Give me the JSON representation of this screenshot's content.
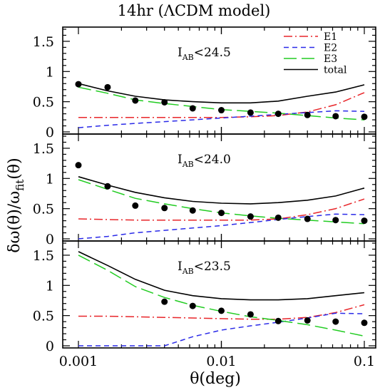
{
  "chart_data": {
    "type": "line",
    "title": "14hr (ΛCDM model)",
    "xlabel": "θ(deg)",
    "ylabel": "δω(θ)/ωfit(θ)",
    "ylabel_main": "δω(θ)/ω",
    "ylabel_sub": "fit",
    "ylabel_tail": "(θ)",
    "xscale": "log",
    "xlim": [
      0.001,
      0.1
    ],
    "ylim": [
      0,
      1.7
    ],
    "x_tick_labels": [
      "0.001",
      "0.01",
      "0.1"
    ],
    "y_tick_labels": [
      "0",
      "0.5",
      "1",
      "1.5"
    ],
    "legend": {
      "placement": "top-right of top panel",
      "entries": [
        {
          "label": "E1",
          "color": "#e8262a",
          "dash": "dash-dot"
        },
        {
          "label": "E2",
          "color": "#2a2ae8",
          "dash": "short-dash"
        },
        {
          "label": "E3",
          "color": "#22cc22",
          "dash": "long-dash"
        },
        {
          "label": "total",
          "color": "#000000",
          "dash": "solid"
        }
      ]
    },
    "x": [
      0.001,
      0.0016,
      0.0025,
      0.004,
      0.0063,
      0.01,
      0.016,
      0.025,
      0.04,
      0.063,
      0.1
    ],
    "panels": [
      {
        "label_main": "I",
        "label_sub": "AB",
        "label_rest": "<24.5",
        "series": [
          {
            "name": "E1",
            "values": [
              0.24,
              0.24,
              0.24,
              0.24,
              0.24,
              0.24,
              0.25,
              0.27,
              0.33,
              0.45,
              0.65
            ]
          },
          {
            "name": "E2",
            "values": [
              0.07,
              0.11,
              0.14,
              0.17,
              0.2,
              0.23,
              0.26,
              0.29,
              0.32,
              0.35,
              0.34
            ]
          },
          {
            "name": "E3",
            "values": [
              0.74,
              0.64,
              0.53,
              0.47,
              0.42,
              0.37,
              0.34,
              0.31,
              0.27,
              0.23,
              0.2
            ]
          },
          {
            "name": "total",
            "values": [
              0.8,
              0.68,
              0.59,
              0.53,
              0.5,
              0.48,
              0.48,
              0.51,
              0.59,
              0.66,
              0.78
            ]
          }
        ],
        "points": [
          0.79,
          0.74,
          0.52,
          0.49,
          0.39,
          0.36,
          0.32,
          0.3,
          0.28,
          0.26,
          0.25
        ]
      },
      {
        "label_main": "I",
        "label_sub": "AB",
        "label_rest": "<24.0",
        "series": [
          {
            "name": "E1",
            "values": [
              0.33,
              0.32,
              0.31,
              0.31,
              0.31,
              0.31,
              0.31,
              0.33,
              0.4,
              0.5,
              0.66
            ]
          },
          {
            "name": "E2",
            "values": [
              0.0,
              0.04,
              0.1,
              0.14,
              0.18,
              0.22,
              0.27,
              0.32,
              0.37,
              0.41,
              0.4
            ]
          },
          {
            "name": "E3",
            "values": [
              0.98,
              0.82,
              0.67,
              0.58,
              0.5,
              0.43,
              0.38,
              0.34,
              0.31,
              0.28,
              0.25
            ]
          },
          {
            "name": "total",
            "values": [
              1.03,
              0.89,
              0.77,
              0.68,
              0.62,
              0.59,
              0.58,
              0.6,
              0.64,
              0.71,
              0.84
            ]
          }
        ],
        "points": [
          1.22,
          0.87,
          0.55,
          0.51,
          0.47,
          0.43,
          0.37,
          0.35,
          0.33,
          0.31,
          0.3
        ]
      },
      {
        "label_main": "I",
        "label_sub": "AB",
        "label_rest": "<23.5",
        "series": [
          {
            "name": "E1",
            "values": [
              0.49,
              0.49,
              0.48,
              0.47,
              0.46,
              0.45,
              0.44,
              0.44,
              0.47,
              0.55,
              0.68
            ]
          },
          {
            "name": "E2",
            "values": [
              0.0,
              0.0,
              0.0,
              0.0,
              0.15,
              0.26,
              0.33,
              0.39,
              0.46,
              0.54,
              0.53
            ]
          },
          {
            "name": "E3",
            "values": [
              1.5,
              1.25,
              0.98,
              0.8,
              0.67,
              0.57,
              0.48,
              0.42,
              0.35,
              0.26,
              0.16
            ]
          },
          {
            "name": "total",
            "values": [
              1.56,
              1.33,
              1.1,
              0.92,
              0.83,
              0.78,
              0.76,
              0.76,
              0.78,
              0.83,
              0.88
            ]
          }
        ],
        "points": [
          null,
          null,
          null,
          0.73,
          0.66,
          0.58,
          0.52,
          0.41,
          0.42,
          0.4,
          0.38
        ]
      }
    ]
  }
}
